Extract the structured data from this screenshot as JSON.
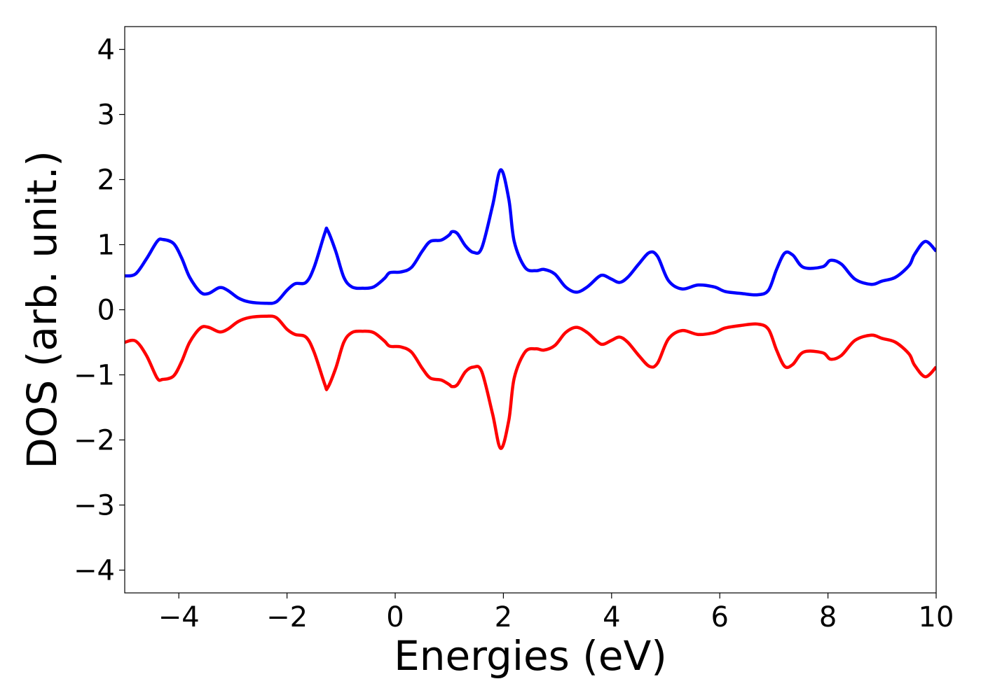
{
  "chart_data": {
    "type": "line",
    "title": "",
    "xlabel": "Energies (eV)",
    "ylabel": "DOS (arb. unit.)",
    "xlim": [
      -5,
      10
    ],
    "ylim": [
      -4.35,
      4.35
    ],
    "grid": false,
    "legend": "none",
    "xticks": [
      -4,
      -2,
      0,
      2,
      4,
      6,
      8,
      10
    ],
    "yticks": [
      -4,
      -3,
      -2,
      -1,
      0,
      1,
      2,
      3,
      4
    ],
    "xtick_labels": [
      "−4",
      "−2",
      "0",
      "2",
      "4",
      "6",
      "8",
      "10"
    ],
    "ytick_labels": [
      "−4",
      "−3",
      "−2",
      "−1",
      "0",
      "1",
      "2",
      "3",
      "4"
    ],
    "series": [
      {
        "color": "#0000ff",
        "x": [
          -5.0,
          -4.8,
          -4.6,
          -4.4,
          -4.3,
          -4.1,
          -3.95,
          -3.8,
          -3.6,
          -3.45,
          -3.25,
          -3.1,
          -2.9,
          -2.7,
          -2.4,
          -2.2,
          -2.0,
          -1.85,
          -1.65,
          -1.5,
          -1.3,
          -1.25,
          -1.1,
          -0.95,
          -0.8,
          -0.6,
          -0.4,
          -0.2,
          -0.1,
          0.1,
          0.3,
          0.5,
          0.65,
          0.85,
          1.0,
          1.05,
          1.15,
          1.3,
          1.45,
          1.6,
          1.8,
          1.95,
          2.1,
          2.2,
          2.4,
          2.6,
          2.75,
          2.95,
          3.15,
          3.35,
          3.55,
          3.75,
          3.85,
          4.0,
          4.15,
          4.3,
          4.5,
          4.7,
          4.85,
          5.05,
          5.3,
          5.6,
          5.9,
          6.1,
          6.4,
          6.7,
          6.9,
          7.05,
          7.2,
          7.35,
          7.55,
          7.9,
          8.05,
          8.25,
          8.5,
          8.8,
          9.0,
          9.25,
          9.5,
          9.6,
          9.8,
          10.0
        ],
        "y": [
          0.52,
          0.55,
          0.78,
          1.05,
          1.08,
          1.02,
          0.8,
          0.5,
          0.27,
          0.25,
          0.34,
          0.3,
          0.18,
          0.12,
          0.1,
          0.12,
          0.3,
          0.4,
          0.42,
          0.65,
          1.18,
          1.22,
          0.9,
          0.5,
          0.35,
          0.33,
          0.35,
          0.48,
          0.57,
          0.58,
          0.65,
          0.9,
          1.05,
          1.07,
          1.15,
          1.2,
          1.17,
          0.98,
          0.88,
          0.95,
          1.6,
          2.15,
          1.7,
          1.05,
          0.65,
          0.6,
          0.62,
          0.55,
          0.35,
          0.27,
          0.35,
          0.5,
          0.53,
          0.47,
          0.42,
          0.5,
          0.7,
          0.88,
          0.82,
          0.45,
          0.32,
          0.38,
          0.35,
          0.28,
          0.25,
          0.23,
          0.3,
          0.62,
          0.87,
          0.84,
          0.65,
          0.66,
          0.76,
          0.7,
          0.47,
          0.39,
          0.44,
          0.5,
          0.68,
          0.85,
          1.05,
          0.9
        ]
      },
      {
        "color": "#ff0000",
        "x": [
          -5.0,
          -4.8,
          -4.6,
          -4.4,
          -4.3,
          -4.1,
          -3.95,
          -3.8,
          -3.6,
          -3.45,
          -3.25,
          -3.1,
          -2.9,
          -2.7,
          -2.4,
          -2.2,
          -2.0,
          -1.85,
          -1.65,
          -1.5,
          -1.3,
          -1.25,
          -1.1,
          -0.95,
          -0.8,
          -0.6,
          -0.4,
          -0.2,
          -0.1,
          0.1,
          0.3,
          0.5,
          0.65,
          0.85,
          1.0,
          1.05,
          1.15,
          1.3,
          1.45,
          1.6,
          1.8,
          1.95,
          2.1,
          2.2,
          2.4,
          2.6,
          2.75,
          2.95,
          3.15,
          3.35,
          3.55,
          3.75,
          3.85,
          4.0,
          4.15,
          4.3,
          4.5,
          4.7,
          4.85,
          5.05,
          5.3,
          5.6,
          5.9,
          6.1,
          6.4,
          6.7,
          6.9,
          7.05,
          7.2,
          7.35,
          7.55,
          7.9,
          8.05,
          8.25,
          8.5,
          8.8,
          9.0,
          9.25,
          9.5,
          9.6,
          9.8,
          10.0
        ],
        "y": [
          -0.5,
          -0.48,
          -0.7,
          -1.05,
          -1.07,
          -1.02,
          -0.8,
          -0.5,
          -0.28,
          -0.27,
          -0.34,
          -0.3,
          -0.18,
          -0.12,
          -0.1,
          -0.12,
          -0.3,
          -0.38,
          -0.42,
          -0.65,
          -1.15,
          -1.2,
          -0.9,
          -0.5,
          -0.35,
          -0.33,
          -0.35,
          -0.48,
          -0.56,
          -0.57,
          -0.65,
          -0.9,
          -1.05,
          -1.08,
          -1.15,
          -1.18,
          -1.15,
          -0.95,
          -0.88,
          -0.95,
          -1.6,
          -2.13,
          -1.7,
          -1.05,
          -0.65,
          -0.6,
          -0.62,
          -0.55,
          -0.35,
          -0.27,
          -0.35,
          -0.5,
          -0.53,
          -0.47,
          -0.42,
          -0.5,
          -0.7,
          -0.87,
          -0.82,
          -0.45,
          -0.32,
          -0.38,
          -0.35,
          -0.28,
          -0.24,
          -0.22,
          -0.3,
          -0.62,
          -0.87,
          -0.84,
          -0.65,
          -0.66,
          -0.76,
          -0.7,
          -0.47,
          -0.39,
          -0.44,
          -0.5,
          -0.68,
          -0.85,
          -1.03,
          -0.88
        ]
      }
    ]
  }
}
